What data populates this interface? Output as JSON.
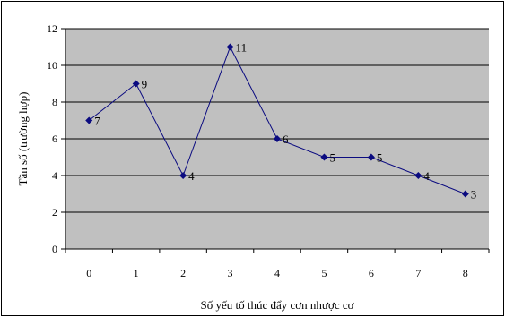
{
  "chart_data": {
    "type": "line",
    "x": [
      0,
      1,
      2,
      3,
      4,
      5,
      6,
      7,
      8
    ],
    "series": [
      {
        "values": [
          7,
          9,
          4,
          11,
          6,
          5,
          5,
          4,
          3
        ]
      }
    ],
    "xlabel": "Số yếu tố thúc đẩy cơn nhược cơ",
    "ylabel": "Tần số (trường hợp)",
    "ylim": [
      0,
      12
    ],
    "yticks": [
      0,
      2,
      4,
      6,
      8,
      10,
      12
    ],
    "grid": true,
    "data_labels": true,
    "colors": {
      "plot_background": "#c0c0c0",
      "line": "#0b0b80",
      "marker": "#0b0b80",
      "gridline": "#000000"
    }
  }
}
